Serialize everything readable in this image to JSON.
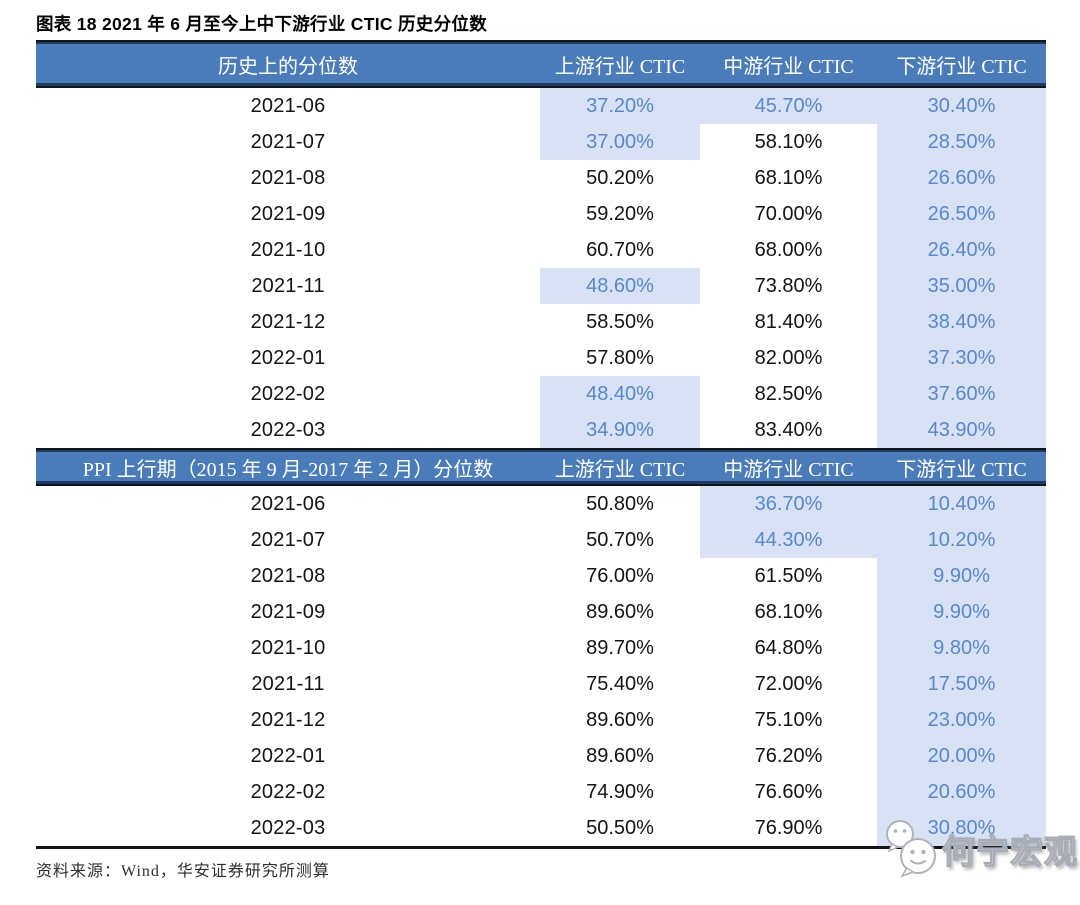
{
  "title": "图表 18 2021 年 6 月至今上中下游行业 CTIC 历史分位数",
  "footer": {
    "source": "资料来源：Wind，华安证券研究所测算"
  },
  "watermark": {
    "name": "何宁宏观"
  },
  "colors": {
    "header_bg": "#4A7CB9",
    "header_edge": "#1C3B66",
    "header_text": "#FFFFFF",
    "rule": "#141414",
    "highlight_bg": "#D9E1F5",
    "highlight_text": "#5588CE",
    "body_text": "#141414"
  },
  "chart_data": {
    "type": "table",
    "sections": [
      {
        "header": {
          "label": "历史上的分位数",
          "upstream": "上游行业 CTIC",
          "midstream": "中游行业 CTIC",
          "downstream": "下游行业 CTIC"
        },
        "rows": [
          {
            "date": "2021-06",
            "cells": [
              {
                "value": "37.20%",
                "highlight": true
              },
              {
                "value": "45.70%",
                "highlight": true
              },
              {
                "value": "30.40%",
                "highlight": true
              }
            ]
          },
          {
            "date": "2021-07",
            "cells": [
              {
                "value": "37.00%",
                "highlight": true
              },
              {
                "value": "58.10%",
                "highlight": false
              },
              {
                "value": "28.50%",
                "highlight": true
              }
            ]
          },
          {
            "date": "2021-08",
            "cells": [
              {
                "value": "50.20%",
                "highlight": false
              },
              {
                "value": "68.10%",
                "highlight": false
              },
              {
                "value": "26.60%",
                "highlight": true
              }
            ]
          },
          {
            "date": "2021-09",
            "cells": [
              {
                "value": "59.20%",
                "highlight": false
              },
              {
                "value": "70.00%",
                "highlight": false
              },
              {
                "value": "26.50%",
                "highlight": true
              }
            ]
          },
          {
            "date": "2021-10",
            "cells": [
              {
                "value": "60.70%",
                "highlight": false
              },
              {
                "value": "68.00%",
                "highlight": false
              },
              {
                "value": "26.40%",
                "highlight": true
              }
            ]
          },
          {
            "date": "2021-11",
            "cells": [
              {
                "value": "48.60%",
                "highlight": true
              },
              {
                "value": "73.80%",
                "highlight": false
              },
              {
                "value": "35.00%",
                "highlight": true
              }
            ]
          },
          {
            "date": "2021-12",
            "cells": [
              {
                "value": "58.50%",
                "highlight": false
              },
              {
                "value": "81.40%",
                "highlight": false
              },
              {
                "value": "38.40%",
                "highlight": true
              }
            ]
          },
          {
            "date": "2022-01",
            "cells": [
              {
                "value": "57.80%",
                "highlight": false
              },
              {
                "value": "82.00%",
                "highlight": false
              },
              {
                "value": "37.30%",
                "highlight": true
              }
            ]
          },
          {
            "date": "2022-02",
            "cells": [
              {
                "value": "48.40%",
                "highlight": true
              },
              {
                "value": "82.50%",
                "highlight": false
              },
              {
                "value": "37.60%",
                "highlight": true
              }
            ]
          },
          {
            "date": "2022-03",
            "cells": [
              {
                "value": "34.90%",
                "highlight": true
              },
              {
                "value": "83.40%",
                "highlight": false
              },
              {
                "value": "43.90%",
                "highlight": true
              }
            ]
          }
        ]
      },
      {
        "header": {
          "label": "PPI 上行期（2015 年 9 月-2017 年 2 月）分位数",
          "upstream": "上游行业 CTIC",
          "midstream": "中游行业 CTIC",
          "downstream": "下游行业 CTIC"
        },
        "rows": [
          {
            "date": "2021-06",
            "cells": [
              {
                "value": "50.80%",
                "highlight": false
              },
              {
                "value": "36.70%",
                "highlight": true
              },
              {
                "value": "10.40%",
                "highlight": true
              }
            ]
          },
          {
            "date": "2021-07",
            "cells": [
              {
                "value": "50.70%",
                "highlight": false
              },
              {
                "value": "44.30%",
                "highlight": true
              },
              {
                "value": "10.20%",
                "highlight": true
              }
            ]
          },
          {
            "date": "2021-08",
            "cells": [
              {
                "value": "76.00%",
                "highlight": false
              },
              {
                "value": "61.50%",
                "highlight": false
              },
              {
                "value": "9.90%",
                "highlight": true
              }
            ]
          },
          {
            "date": "2021-09",
            "cells": [
              {
                "value": "89.60%",
                "highlight": false
              },
              {
                "value": "68.10%",
                "highlight": false
              },
              {
                "value": "9.90%",
                "highlight": true
              }
            ]
          },
          {
            "date": "2021-10",
            "cells": [
              {
                "value": "89.70%",
                "highlight": false
              },
              {
                "value": "64.80%",
                "highlight": false
              },
              {
                "value": "9.80%",
                "highlight": true
              }
            ]
          },
          {
            "date": "2021-11",
            "cells": [
              {
                "value": "75.40%",
                "highlight": false
              },
              {
                "value": "72.00%",
                "highlight": false
              },
              {
                "value": "17.50%",
                "highlight": true
              }
            ]
          },
          {
            "date": "2021-12",
            "cells": [
              {
                "value": "89.60%",
                "highlight": false
              },
              {
                "value": "75.10%",
                "highlight": false
              },
              {
                "value": "23.00%",
                "highlight": true
              }
            ]
          },
          {
            "date": "2022-01",
            "cells": [
              {
                "value": "89.60%",
                "highlight": false
              },
              {
                "value": "76.20%",
                "highlight": false
              },
              {
                "value": "20.00%",
                "highlight": true
              }
            ]
          },
          {
            "date": "2022-02",
            "cells": [
              {
                "value": "74.90%",
                "highlight": false
              },
              {
                "value": "76.60%",
                "highlight": false
              },
              {
                "value": "20.60%",
                "highlight": true
              }
            ]
          },
          {
            "date": "2022-03",
            "cells": [
              {
                "value": "50.50%",
                "highlight": false
              },
              {
                "value": "76.90%",
                "highlight": false
              },
              {
                "value": "30.80%",
                "highlight": true
              }
            ]
          }
        ]
      }
    ]
  }
}
